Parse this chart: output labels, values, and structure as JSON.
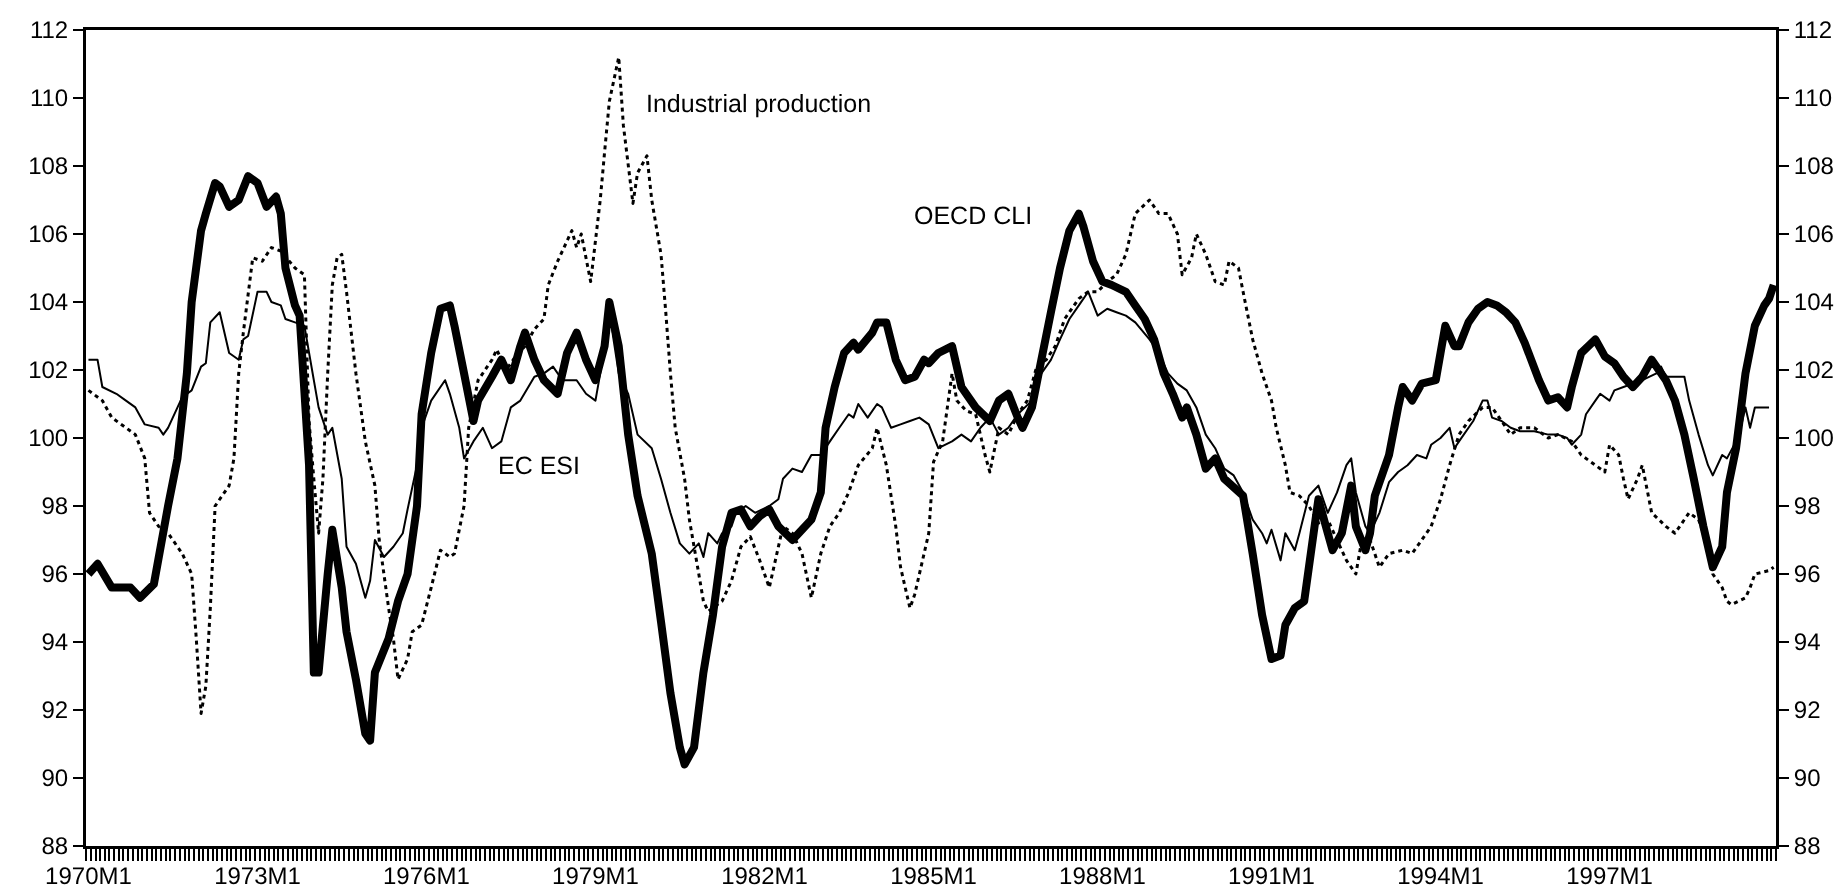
{
  "chart_data": {
    "type": "line",
    "xlim": [
      "1969-12-16",
      "1999-12-16"
    ],
    "xticks": [
      {
        "value": "1970-01",
        "label": "1970M1"
      },
      {
        "value": "1973-01",
        "label": "1973M1"
      },
      {
        "value": "1976-01",
        "label": "1976M1"
      },
      {
        "value": "1979-01",
        "label": "1979M1"
      },
      {
        "value": "1982-01",
        "label": "1982M1"
      },
      {
        "value": "1985-01",
        "label": "1985M1"
      },
      {
        "value": "1988-01",
        "label": "1988M1"
      },
      {
        "value": "1991-01",
        "label": "1991M1"
      },
      {
        "value": "1994-01",
        "label": "1994M1"
      },
      {
        "value": "1997-01",
        "label": "1997M1"
      }
    ],
    "ylim": [
      88,
      112
    ],
    "yticks": [
      88,
      90,
      92,
      94,
      96,
      98,
      100,
      102,
      104,
      106,
      108,
      110,
      112
    ],
    "y2lim": [
      88,
      112
    ],
    "y2ticks": [
      88,
      90,
      92,
      94,
      96,
      98,
      100,
      102,
      104,
      106,
      108,
      110,
      112
    ],
    "grid": false,
    "series": [
      {
        "name": "OECD CLI",
        "color": "#000000",
        "line_style": "solid",
        "x": [
          "1970-01",
          "1970-03",
          "1970-06",
          "1970-10",
          "1970-12",
          "1971-03",
          "1971-06",
          "1971-08",
          "1971-10",
          "1971-11",
          "1972-01",
          "1972-02",
          "1972-04",
          "1972-05",
          "1972-07",
          "1972-09",
          "1972-11",
          "1973-01",
          "1973-03",
          "1973-05",
          "1973-06",
          "1973-07",
          "1973-09",
          "1973-10",
          "1973-12",
          "1974-01",
          "1974-02",
          "1974-04",
          "1974-05",
          "1974-07",
          "1974-08",
          "1974-10",
          "1974-12",
          "1975-01",
          "1975-02",
          "1975-05",
          "1975-07",
          "1975-09",
          "1975-11",
          "1975-12",
          "1976-02",
          "1976-04",
          "1976-06",
          "1976-07",
          "1976-09",
          "1976-11",
          "1976-12",
          "1977-03",
          "1977-05",
          "1977-07",
          "1977-09",
          "1977-10",
          "1977-12",
          "1978-02",
          "1978-05",
          "1978-07",
          "1978-09",
          "1978-11",
          "1979-01",
          "1979-03",
          "1979-04",
          "1979-06",
          "1979-08",
          "1979-10",
          "1980-01",
          "1980-03",
          "1980-05",
          "1980-07",
          "1980-08",
          "1980-10",
          "1980-12",
          "1981-02",
          "1981-04",
          "1981-06",
          "1981-08",
          "1981-10",
          "1981-12",
          "1982-02",
          "1982-04",
          "1982-07",
          "1982-09",
          "1982-11",
          "1983-01",
          "1983-02",
          "1983-04",
          "1983-06",
          "1983-08",
          "1983-09",
          "1983-12",
          "1984-01",
          "1984-03",
          "1984-05",
          "1984-07",
          "1984-09",
          "1984-11",
          "1984-12",
          "1985-02",
          "1985-05",
          "1985-07",
          "1985-10",
          "1986-01",
          "1986-03",
          "1986-05",
          "1986-07",
          "1986-08",
          "1986-10",
          "1986-12",
          "1987-02",
          "1987-04",
          "1987-06",
          "1987-08",
          "1987-09",
          "1987-11",
          "1988-01",
          "1988-03",
          "1988-06",
          "1988-08",
          "1988-10",
          "1988-12",
          "1989-02",
          "1989-04",
          "1989-06",
          "1989-07",
          "1989-09",
          "1989-11",
          "1990-01",
          "1990-03",
          "1990-07",
          "1990-09",
          "1990-11",
          "1991-01",
          "1991-03",
          "1991-04",
          "1991-06",
          "1991-08",
          "1991-10",
          "1991-11",
          "1992-01",
          "1992-02",
          "1992-04",
          "1992-06",
          "1992-07",
          "1992-09",
          "1992-10",
          "1992-11",
          "1993-02",
          "1993-04",
          "1993-05",
          "1993-07",
          "1993-09",
          "1993-12",
          "1994-01",
          "1994-02",
          "1994-04",
          "1994-05",
          "1994-07",
          "1994-09",
          "1994-11",
          "1995-01",
          "1995-03",
          "1995-05",
          "1995-07",
          "1995-10",
          "1995-12",
          "1996-02",
          "1996-04",
          "1996-05",
          "1996-07",
          "1996-10",
          "1996-12",
          "1997-02",
          "1997-04",
          "1997-06",
          "1997-08",
          "1997-10",
          "1998-01",
          "1998-03",
          "1998-05",
          "1998-07",
          "1998-09",
          "1998-11",
          "1999-01",
          "1999-02",
          "1999-04",
          "1999-06",
          "1999-08",
          "1999-10",
          "1999-11",
          "1999-12"
        ],
        "values": [
          96.0,
          96.3,
          95.6,
          95.6,
          95.3,
          95.7,
          98.0,
          99.4,
          101.9,
          104.0,
          106.1,
          106.6,
          107.5,
          107.4,
          106.8,
          107.0,
          107.7,
          107.5,
          106.8,
          107.1,
          106.6,
          105.0,
          103.9,
          103.6,
          99.2,
          93.1,
          93.1,
          96.0,
          97.3,
          95.6,
          94.3,
          92.9,
          91.3,
          91.1,
          93.1,
          94.1,
          95.2,
          96.0,
          98.0,
          100.7,
          102.5,
          103.8,
          103.9,
          103.3,
          101.9,
          100.5,
          101.1,
          101.8,
          102.3,
          101.7,
          102.7,
          103.1,
          102.3,
          101.7,
          101.3,
          102.5,
          103.1,
          102.3,
          101.7,
          102.7,
          104.0,
          102.7,
          100.1,
          98.3,
          96.6,
          94.6,
          92.5,
          90.9,
          90.4,
          90.9,
          93.1,
          94.8,
          96.8,
          97.8,
          97.9,
          97.4,
          97.7,
          97.9,
          97.4,
          97.0,
          97.3,
          97.6,
          98.4,
          100.3,
          101.5,
          102.5,
          102.8,
          102.6,
          103.1,
          103.4,
          103.4,
          102.3,
          101.7,
          101.8,
          102.3,
          102.2,
          102.5,
          102.7,
          101.5,
          100.9,
          100.5,
          101.1,
          101.3,
          100.6,
          100.3,
          100.9,
          102.3,
          103.7,
          105.0,
          106.1,
          106.6,
          106.2,
          105.2,
          104.6,
          104.5,
          104.3,
          103.9,
          103.5,
          102.9,
          101.9,
          101.3,
          100.6,
          100.9,
          100.1,
          99.1,
          99.4,
          98.8,
          98.3,
          96.6,
          94.8,
          93.5,
          93.6,
          94.5,
          95.0,
          95.2,
          97.2,
          98.2,
          97.2,
          96.7,
          97.2,
          98.6,
          97.4,
          96.7,
          97.2,
          98.3,
          99.5,
          100.9,
          101.5,
          101.1,
          101.6,
          101.7,
          102.5,
          103.3,
          102.7,
          102.7,
          103.4,
          103.8,
          104.0,
          103.9,
          103.7,
          103.4,
          102.8,
          101.7,
          101.1,
          101.2,
          100.9,
          101.5,
          102.5,
          102.9,
          102.4,
          102.2,
          101.8,
          101.5,
          101.8,
          102.3,
          101.7,
          101.1,
          100.1,
          98.8,
          97.4,
          96.2,
          96.8,
          98.4,
          99.7,
          101.9,
          103.3,
          103.9,
          104.1,
          104.5
        ]
      },
      {
        "name": "EC ESI",
        "color": "#000000",
        "line_style": "solid",
        "x": [
          "1970-01",
          "1970-03",
          "1970-04",
          "1970-07",
          "1970-09",
          "1970-11",
          "1971-01",
          "1971-04",
          "1971-05",
          "1971-06",
          "1971-09",
          "1971-11",
          "1972-01",
          "1972-02",
          "1972-03",
          "1972-05",
          "1972-07",
          "1972-09",
          "1972-10",
          "1972-11",
          "1973-01",
          "1973-03",
          "1973-04",
          "1973-06",
          "1973-07",
          "1973-09",
          "1973-11",
          "1974-01",
          "1974-02",
          "1974-04",
          "1974-05",
          "1974-07",
          "1974-08",
          "1974-10",
          "1974-12",
          "1975-01",
          "1975-02",
          "1975-04",
          "1975-06",
          "1975-08",
          "1975-09",
          "1975-11",
          "1975-12",
          "1976-02",
          "1976-05",
          "1976-06",
          "1976-08",
          "1976-09",
          "1976-11",
          "1977-01",
          "1977-03",
          "1977-05",
          "1977-07",
          "1977-09",
          "1977-12",
          "1978-02",
          "1978-04",
          "1978-06",
          "1978-09",
          "1978-11",
          "1979-01",
          "1979-02",
          "1979-04",
          "1979-06",
          "1979-08",
          "1979-10",
          "1980-01",
          "1980-03",
          "1980-05",
          "1980-07",
          "1980-09",
          "1980-11",
          "1980-12",
          "1981-01",
          "1981-03",
          "1981-04",
          "1981-06",
          "1981-07",
          "1981-09",
          "1981-11",
          "1982-02",
          "1982-04",
          "1982-05",
          "1982-07",
          "1982-09",
          "1982-11",
          "1983-01",
          "1983-03",
          "1983-05",
          "1983-07",
          "1983-08",
          "1983-09",
          "1983-11",
          "1984-01",
          "1984-02",
          "1984-04",
          "1984-06",
          "1984-08",
          "1984-10",
          "1984-12",
          "1985-02",
          "1985-05",
          "1985-07",
          "1985-09",
          "1985-11",
          "1986-01",
          "1986-03",
          "1986-05",
          "1986-07",
          "1986-10",
          "1986-12",
          "1987-02",
          "1987-04",
          "1987-06",
          "1987-08",
          "1987-10",
          "1987-12",
          "1988-02",
          "1988-04",
          "1988-06",
          "1988-08",
          "1988-11",
          "1989-01",
          "1989-03",
          "1989-05",
          "1989-07",
          "1989-09",
          "1989-11",
          "1990-01",
          "1990-03",
          "1990-05",
          "1990-07",
          "1990-09",
          "1990-11",
          "1990-12",
          "1991-01",
          "1991-03",
          "1991-04",
          "1991-06",
          "1991-07",
          "1991-09",
          "1991-11",
          "1992-01",
          "1992-03",
          "1992-05",
          "1992-06",
          "1992-07",
          "1992-09",
          "1992-10",
          "1992-12",
          "1993-02",
          "1993-04",
          "1993-06",
          "1993-08",
          "1993-10",
          "1993-11",
          "1994-01",
          "1994-03",
          "1994-04",
          "1994-05",
          "1994-08",
          "1994-10",
          "1994-11",
          "1994-12",
          "1995-02",
          "1995-04",
          "1995-06",
          "1995-09",
          "1995-12",
          "1996-02",
          "1996-04",
          "1996-05",
          "1996-07",
          "1996-08",
          "1996-10",
          "1996-11",
          "1997-01",
          "1997-02",
          "1997-04",
          "1997-06",
          "1997-08",
          "1997-11",
          "1997-12",
          "1998-01",
          "1998-05",
          "1998-06",
          "1998-08",
          "1998-10",
          "1998-11",
          "1999-01",
          "1999-02",
          "1999-04",
          "1999-05",
          "1999-06",
          "1999-07",
          "1999-08",
          "1999-11"
        ],
        "values": [
          102.3,
          102.3,
          101.5,
          101.3,
          101.1,
          100.9,
          100.4,
          100.3,
          100.1,
          100.3,
          101.2,
          101.4,
          102.1,
          102.2,
          103.4,
          103.7,
          102.5,
          102.3,
          102.9,
          103.0,
          104.3,
          104.3,
          104.0,
          103.9,
          103.5,
          103.4,
          103.3,
          101.7,
          100.9,
          100.1,
          100.3,
          98.8,
          96.8,
          96.3,
          95.3,
          95.8,
          97.0,
          96.5,
          96.8,
          97.2,
          97.9,
          99.2,
          100.3,
          101.1,
          101.7,
          101.3,
          100.3,
          99.4,
          99.9,
          100.3,
          99.7,
          99.9,
          100.9,
          101.1,
          101.8,
          101.9,
          102.1,
          101.7,
          101.7,
          101.3,
          101.1,
          101.9,
          103.7,
          101.9,
          101.3,
          100.1,
          99.7,
          98.8,
          97.8,
          96.9,
          96.6,
          96.9,
          96.5,
          97.2,
          96.9,
          97.2,
          97.4,
          97.8,
          98.0,
          97.8,
          98.0,
          98.2,
          98.8,
          99.1,
          99.0,
          99.5,
          99.5,
          99.9,
          100.3,
          100.7,
          100.6,
          101.0,
          100.6,
          101.0,
          100.9,
          100.3,
          100.4,
          100.5,
          100.6,
          100.4,
          99.7,
          99.9,
          100.1,
          99.9,
          100.3,
          100.6,
          100.1,
          100.3,
          100.7,
          101.1,
          101.9,
          102.3,
          102.9,
          103.5,
          103.9,
          104.3,
          103.6,
          103.8,
          103.7,
          103.6,
          103.4,
          102.9,
          102.5,
          101.9,
          101.6,
          101.4,
          100.9,
          100.1,
          99.7,
          99.1,
          98.9,
          98.4,
          97.6,
          97.2,
          96.9,
          97.3,
          96.4,
          97.2,
          96.7,
          97.2,
          98.3,
          98.6,
          97.8,
          98.4,
          99.2,
          99.4,
          98.4,
          97.4,
          97.2,
          97.8,
          98.7,
          99.0,
          99.2,
          99.5,
          99.4,
          99.8,
          100.0,
          100.3,
          99.7,
          99.9,
          100.5,
          101.1,
          101.1,
          100.6,
          100.5,
          100.3,
          100.2,
          100.2,
          100.1,
          100.1,
          100.0,
          99.8,
          100.1,
          100.7,
          101.1,
          101.3,
          101.1,
          101.4,
          101.5,
          101.6,
          101.7,
          101.9,
          102.1,
          101.8,
          101.8,
          101.1,
          100.1,
          99.2,
          98.9,
          99.5,
          99.4,
          99.9,
          100.3,
          100.9,
          100.3,
          100.9,
          100.9
        ]
      },
      {
        "name": "Industrial production",
        "color": "#000000",
        "line_style": "dotted",
        "x": [
          "1970-01",
          "1970-04",
          "1970-06",
          "1970-09",
          "1970-11",
          "1971-01",
          "1971-02",
          "1971-04",
          "1971-06",
          "1971-09",
          "1971-11",
          "1971-12",
          "1972-01",
          "1972-02",
          "1972-03",
          "1972-04",
          "1972-07",
          "1972-08",
          "1972-09",
          "1972-10",
          "1972-12",
          "1973-02",
          "1973-04",
          "1973-06",
          "1973-09",
          "1973-11",
          "1973-12",
          "1974-01",
          "1974-02",
          "1974-03",
          "1974-04",
          "1974-05",
          "1974-06",
          "1974-07",
          "1974-08",
          "1974-10",
          "1974-12",
          "1975-02",
          "1975-03",
          "1975-05",
          "1975-06",
          "1975-07",
          "1975-09",
          "1975-10",
          "1975-12",
          "1976-02",
          "1976-04",
          "1976-06",
          "1976-07",
          "1976-09",
          "1976-10",
          "1976-12",
          "1977-03",
          "1977-04",
          "1977-06",
          "1977-08",
          "1977-10",
          "1977-12",
          "1978-02",
          "1978-03",
          "1978-05",
          "1978-08",
          "1978-09",
          "1978-10",
          "1978-12",
          "1979-02",
          "1979-03",
          "1979-04",
          "1979-06",
          "1979-07",
          "1979-09",
          "1979-10",
          "1979-12",
          "1980-01",
          "1980-03",
          "1980-04",
          "1980-05",
          "1980-06",
          "1980-08",
          "1980-09",
          "1980-11",
          "1980-12",
          "1981-01",
          "1981-04",
          "1981-06",
          "1981-08",
          "1981-10",
          "1981-12",
          "1982-02",
          "1982-04",
          "1982-05",
          "1982-07",
          "1982-09",
          "1982-11",
          "1983-01",
          "1983-03",
          "1983-05",
          "1983-07",
          "1983-09",
          "1983-12",
          "1984-01",
          "1984-03",
          "1984-05",
          "1984-06",
          "1984-08",
          "1984-09",
          "1984-12",
          "1985-01",
          "1985-03",
          "1985-05",
          "1985-06",
          "1985-08",
          "1985-10",
          "1985-12",
          "1986-01",
          "1986-03",
          "1986-05",
          "1986-07",
          "1986-09",
          "1986-11",
          "1987-01",
          "1987-03",
          "1987-05",
          "1987-08",
          "1987-10",
          "1987-12",
          "1988-02",
          "1988-04",
          "1988-06",
          "1988-08",
          "1988-11",
          "1989-01",
          "1989-03",
          "1989-05",
          "1989-06",
          "1989-08",
          "1989-09",
          "1989-11",
          "1990-01",
          "1990-03",
          "1990-04",
          "1990-06",
          "1990-07",
          "1990-09",
          "1990-11",
          "1991-01",
          "1991-02",
          "1991-04",
          "1991-05",
          "1991-07",
          "1991-09",
          "1991-11",
          "1992-01",
          "1992-03",
          "1992-05",
          "1992-07",
          "1992-08",
          "1992-10",
          "1992-12",
          "1993-02",
          "1993-05",
          "1993-07",
          "1993-09",
          "1993-11",
          "1994-01",
          "1994-03",
          "1994-05",
          "1994-07",
          "1994-10",
          "1994-12",
          "1995-02",
          "1995-04",
          "1995-06",
          "1995-09",
          "1995-12",
          "1996-02",
          "1996-05",
          "1996-07",
          "1996-10",
          "1996-12",
          "1997-01",
          "1997-03",
          "1997-04",
          "1997-05",
          "1997-07",
          "1997-08",
          "1997-10",
          "1998-01",
          "1998-03",
          "1998-05",
          "1998-06",
          "1998-08",
          "1998-10",
          "1998-11",
          "1999-01",
          "1999-02",
          "1999-03",
          "1999-06",
          "1999-07",
          "1999-08",
          "1999-11",
          "1999-12"
        ],
        "values": [
          101.4,
          101.1,
          100.6,
          100.3,
          100.1,
          99.4,
          97.8,
          97.4,
          97.2,
          96.6,
          96.0,
          94.1,
          91.9,
          92.7,
          95.0,
          98.0,
          98.6,
          99.4,
          101.9,
          103.1,
          105.3,
          105.2,
          105.6,
          105.5,
          105.0,
          104.8,
          100.5,
          98.8,
          97.2,
          98.8,
          101.9,
          104.5,
          105.3,
          105.4,
          104.3,
          101.9,
          99.9,
          98.6,
          97.0,
          95.0,
          94.1,
          92.9,
          93.5,
          94.3,
          94.5,
          95.6,
          96.7,
          96.5,
          96.6,
          98.0,
          100.3,
          101.7,
          102.3,
          102.6,
          102.0,
          102.4,
          102.7,
          103.2,
          103.5,
          104.5,
          105.2,
          106.1,
          105.6,
          106.0,
          104.6,
          107.0,
          108.4,
          109.9,
          111.2,
          109.2,
          106.9,
          107.8,
          108.3,
          107.0,
          105.4,
          103.7,
          101.9,
          100.3,
          98.8,
          97.6,
          96.0,
          95.2,
          94.9,
          95.2,
          95.8,
          96.8,
          97.1,
          96.4,
          95.6,
          96.8,
          97.4,
          97.2,
          96.6,
          95.3,
          96.6,
          97.4,
          97.8,
          98.4,
          99.2,
          99.7,
          100.3,
          99.2,
          97.4,
          96.2,
          95.0,
          95.4,
          97.2,
          99.3,
          99.9,
          101.9,
          101.1,
          100.8,
          100.7,
          99.5,
          99.0,
          100.3,
          100.1,
          100.7,
          101.1,
          102.1,
          102.3,
          102.7,
          103.5,
          104.1,
          104.3,
          104.3,
          104.6,
          104.8,
          105.4,
          106.6,
          107.0,
          106.6,
          106.6,
          106.0,
          104.8,
          105.3,
          106.0,
          105.4,
          104.6,
          104.5,
          105.2,
          105.0,
          104.3,
          102.9,
          101.9,
          101.1,
          100.3,
          99.2,
          98.4,
          98.3,
          98.0,
          97.5,
          97.6,
          97.0,
          96.4,
          96.0,
          96.8,
          97.0,
          96.2,
          96.6,
          96.7,
          96.6,
          97.0,
          97.4,
          98.2,
          99.2,
          100.1,
          100.5,
          100.9,
          100.9,
          100.5,
          100.1,
          100.3,
          100.3,
          100.0,
          100.1,
          99.9,
          99.5,
          99.2,
          99.0,
          99.8,
          99.5,
          98.8,
          98.2,
          98.8,
          99.2,
          97.8,
          97.4,
          97.2,
          97.6,
          97.8,
          97.6,
          96.8,
          96.0,
          95.6,
          95.2,
          95.1,
          95.3,
          95.6,
          96.0,
          96.1,
          96.2
        ]
      }
    ]
  }
}
